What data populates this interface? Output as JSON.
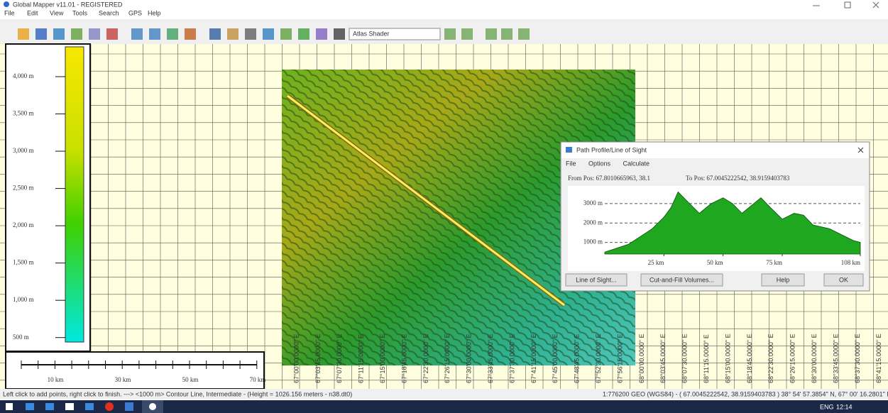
{
  "window": {
    "title": "Global Mapper v11.01 - REGISTERED",
    "menu": [
      "File",
      "Edit",
      "View",
      "Tools",
      "Search",
      "GPS",
      "Help"
    ],
    "shader": "Atlas Shader"
  },
  "elevation_legend": {
    "ylim": [
      440,
      4400
    ],
    "ticks": [
      {
        "value": 4000,
        "label": "4,000 m"
      },
      {
        "value": 3500,
        "label": "3,500 m"
      },
      {
        "value": 3000,
        "label": "3,000 m"
      },
      {
        "value": 2500,
        "label": "2,500 m"
      },
      {
        "value": 2000,
        "label": "2,000 m"
      },
      {
        "value": 1500,
        "label": "1,500 m"
      },
      {
        "value": 1000,
        "label": "1,000 m"
      },
      {
        "value": 500,
        "label": "500 m"
      }
    ]
  },
  "scale_bar": {
    "labels": [
      "10 km",
      "30 km",
      "50 km",
      "70 km"
    ]
  },
  "grid_labels": [
    "67°00'00.0000\" E",
    "67°03'45.0000\" E",
    "67°07'30.0000\" E",
    "67°11'15.0000\" E",
    "67°15'00.0000\" E",
    "67°18'45.0000\" E",
    "67°22'30.0000\" E",
    "67°26'15.0000\" E",
    "67°30'00.0000\" E",
    "67°33'45.0000\" E",
    "67°37'30.0000\" E",
    "67°41'15.0000\" E",
    "67°45'00.0000\" E",
    "67°48'45.0000\" E",
    "67°52'30.0000\" E",
    "67°56'15.0000\" E",
    "68°00'00.0000\" E",
    "68°03'45.0000\" E",
    "68°07'30.0000\" E",
    "68°11'15.0000\" E",
    "68°15'00.0000\" E",
    "68°18'45.0000\" E",
    "68°22'30.0000\" E",
    "68°26'15.0000\" E",
    "68°30'00.0000\" E",
    "68°33'45.0000\" E",
    "68°37'30.0000\" E",
    "68°41'15.0000\" E"
  ],
  "dialog": {
    "title": "Path Profile/Line of Sight",
    "menu": [
      "File",
      "Options",
      "Calculate"
    ],
    "from_pos": "From Pos: 67.8010665963, 38.1",
    "to_pos": "To Pos: 67.0045222542, 38.9159403783",
    "profile": {
      "xlim": [
        0,
        108
      ],
      "ylim": [
        400,
        3800
      ],
      "yticks": [
        {
          "value": 1000,
          "label": "1000 m"
        },
        {
          "value": 2000,
          "label": "2000 m"
        },
        {
          "value": 3000,
          "label": "3000 m"
        }
      ],
      "xticks": [
        {
          "value": 25,
          "label": "25 km"
        },
        {
          "value": 50,
          "label": "50 km"
        },
        {
          "value": 75,
          "label": "75 km"
        },
        {
          "value": 108,
          "label": "108 km"
        }
      ],
      "x": [
        0,
        5,
        10,
        15,
        20,
        25,
        28,
        31,
        35,
        40,
        45,
        50,
        54,
        58,
        62,
        66,
        70,
        75,
        80,
        84,
        88,
        95,
        100,
        105,
        108
      ],
      "values": [
        500,
        700,
        900,
        1300,
        1700,
        2300,
        2800,
        3600,
        3100,
        2500,
        3000,
        3300,
        3000,
        2500,
        2900,
        3300,
        2800,
        2200,
        2500,
        2400,
        1900,
        1700,
        1400,
        1100,
        1000
      ],
      "color": "#1fa81f"
    },
    "buttons": [
      "Line of Sight...",
      "Cut-and-Fill Volumes...",
      "Help",
      "OK"
    ]
  },
  "status": {
    "left": "Left click to add points, right click to finish. ---> <1000 m> Contour Line, Intermediate - (Height = 1026.156 meters - n38.dt0)",
    "right": "1:776200 GEO (WGS84) - ( 67.0045222542, 38.9159403783 ) 38° 54' 57.3854\" N, 67° 00' 16.2801\" E"
  },
  "taskbar": {
    "language": "ENG",
    "time": "12:14"
  }
}
